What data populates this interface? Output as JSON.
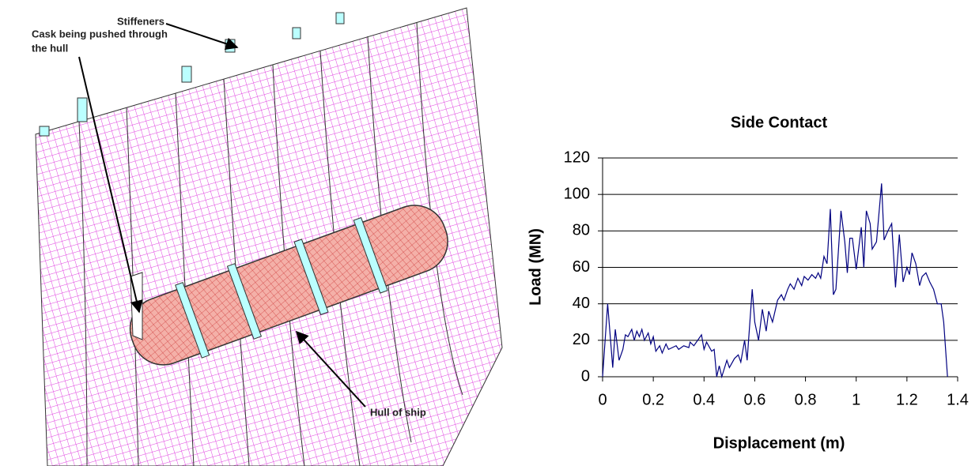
{
  "figure": {
    "labels": {
      "stiffeners": "Stiffeners",
      "cask": [
        "Cask being pushed through",
        "the hull"
      ],
      "hull": "Hull of ship"
    }
  },
  "chart_data": {
    "type": "line",
    "title": "Side Contact",
    "x_label": "Displacement (m)",
    "y_label": "Load (MN)",
    "color": "#000080",
    "grid": true,
    "xlim": [
      0,
      1.4
    ],
    "ylim": [
      0,
      120
    ],
    "xticks": [
      0,
      0.2,
      0.4,
      0.6,
      0.8,
      1,
      1.2,
      1.4
    ],
    "yticks": [
      0,
      20,
      40,
      60,
      80,
      100,
      120
    ],
    "x": [
      0,
      0.02,
      0.04,
      0.05,
      0.065,
      0.08,
      0.09,
      0.1,
      0.115,
      0.125,
      0.135,
      0.145,
      0.155,
      0.165,
      0.18,
      0.19,
      0.2,
      0.21,
      0.225,
      0.235,
      0.25,
      0.26,
      0.29,
      0.3,
      0.32,
      0.34,
      0.345,
      0.36,
      0.39,
      0.4,
      0.41,
      0.43,
      0.44,
      0.45,
      0.46,
      0.47,
      0.49,
      0.5,
      0.52,
      0.535,
      0.545,
      0.56,
      0.57,
      0.59,
      0.6,
      0.615,
      0.63,
      0.645,
      0.655,
      0.67,
      0.69,
      0.705,
      0.715,
      0.73,
      0.74,
      0.755,
      0.77,
      0.785,
      0.795,
      0.81,
      0.825,
      0.84,
      0.85,
      0.86,
      0.873,
      0.885,
      0.898,
      0.91,
      0.92,
      0.94,
      0.955,
      0.965,
      0.975,
      0.985,
      1.0,
      1.02,
      1.03,
      1.04,
      1.055,
      1.063,
      1.08,
      1.1,
      1.11,
      1.125,
      1.14,
      1.155,
      1.17,
      1.185,
      1.2,
      1.21,
      1.22,
      1.235,
      1.25,
      1.26,
      1.275,
      1.29,
      1.305,
      1.32,
      1.335,
      1.345,
      1.36
    ],
    "values": [
      0,
      40,
      5,
      26,
      9,
      15,
      23,
      22,
      26,
      20,
      25,
      22,
      26,
      20,
      24,
      18,
      22,
      14,
      17,
      13,
      18,
      15,
      17,
      15,
      17,
      16,
      19,
      17,
      23,
      15,
      19,
      14,
      15,
      0,
      6,
      0,
      9,
      5,
      10,
      12,
      8,
      20,
      9,
      48,
      30,
      20,
      37,
      25,
      36,
      30,
      42,
      45,
      42,
      48,
      51,
      48,
      54,
      50,
      55,
      53,
      56,
      54,
      57,
      54,
      66,
      62,
      92,
      45,
      48,
      91,
      74,
      57,
      76,
      76,
      59,
      82,
      60,
      91,
      84,
      70,
      74,
      106,
      75,
      80,
      84,
      49,
      78,
      52,
      60,
      56,
      68,
      62,
      50,
      55,
      57,
      52,
      48,
      40,
      40,
      30,
      0
    ]
  }
}
